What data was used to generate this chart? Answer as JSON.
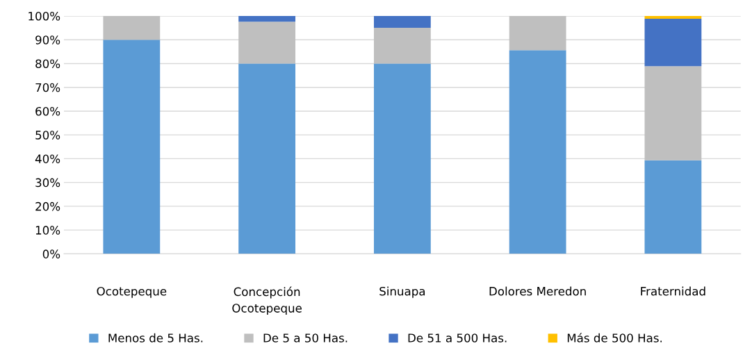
{
  "chart_data": {
    "type": "bar",
    "stacked": true,
    "categories": [
      "Ocotepeque",
      "Concepción\nOcotepeque",
      "Sinuapa",
      "Dolores Meredon",
      "Fraternidad"
    ],
    "series": [
      {
        "name": "Menos de 5 Has.",
        "color": "#5b9bd5",
        "values": [
          90,
          80,
          80,
          85.6,
          39.3
        ]
      },
      {
        "name": "De 5 a 50 Has.",
        "color": "#bfbfbf",
        "values": [
          10,
          17.6,
          15,
          14.4,
          39.6
        ]
      },
      {
        "name": "De 51 a 500 Has.",
        "color": "#4472c4",
        "values": [
          0,
          2.4,
          5,
          0,
          19.9
        ]
      },
      {
        "name": "Más de 500 Has.",
        "color": "#ffc000",
        "values": [
          0,
          0,
          0,
          0,
          1.2
        ]
      }
    ],
    "ylim": [
      0,
      100
    ],
    "yticks": [
      {
        "value": 0,
        "label": "0%"
      },
      {
        "value": 10,
        "label": "10%"
      },
      {
        "value": 20,
        "label": "20%"
      },
      {
        "value": 30,
        "label": "30%"
      },
      {
        "value": 40,
        "label": "40%"
      },
      {
        "value": 50,
        "label": "50%"
      },
      {
        "value": 60,
        "label": "60%"
      },
      {
        "value": 70,
        "label": "70%"
      },
      {
        "value": 80,
        "label": "80%"
      },
      {
        "value": 90,
        "label": "90%"
      },
      {
        "value": 100,
        "label": "100%"
      }
    ],
    "grid": "y",
    "legend": "bottom"
  }
}
